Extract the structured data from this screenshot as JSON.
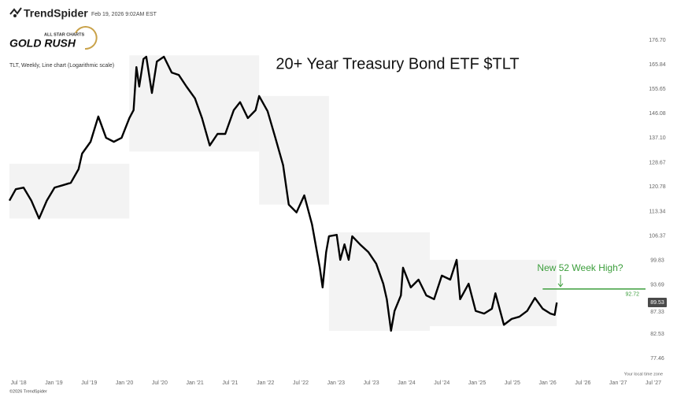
{
  "header": {
    "brand": "TrendSpider",
    "timestamp": "Feb 19, 2026 9:02AM EST",
    "badge_top": "ALL STAR CHARTS",
    "badge_main": "GOLD RUSH"
  },
  "footer": {
    "timezone": "Your local time zone",
    "copyright": "©2026 TrendSpider"
  },
  "chart_data": {
    "type": "line",
    "title": "20+ Year Treasury Bond ETF $TLT",
    "subtitle": "TLT, Weekly, Line chart (Logarithmic scale)",
    "log_scale": true,
    "grid": false,
    "x": [
      2018.37,
      2018.46,
      2018.57,
      2018.68,
      2018.79,
      2018.9,
      2019.01,
      2019.12,
      2019.24,
      2019.35,
      2019.4,
      2019.52,
      2019.63,
      2019.74,
      2019.85,
      2019.96,
      2020.07,
      2020.13,
      2020.17,
      2020.21,
      2020.27,
      2020.31,
      2020.39,
      2020.46,
      2020.56,
      2020.67,
      2020.77,
      2020.88,
      2021.0,
      2021.1,
      2021.21,
      2021.32,
      2021.43,
      2021.55,
      2021.64,
      2021.75,
      2021.86,
      2021.91,
      2022.03,
      2022.14,
      2022.25,
      2022.33,
      2022.44,
      2022.55,
      2022.66,
      2022.77,
      2022.81,
      2022.86,
      2022.9,
      2023.01,
      2023.06,
      2023.12,
      2023.18,
      2023.23,
      2023.34,
      2023.46,
      2023.57,
      2023.67,
      2023.72,
      2023.78,
      2023.83,
      2023.92,
      2023.95,
      2024.06,
      2024.17,
      2024.28,
      2024.39,
      2024.5,
      2024.62,
      2024.71,
      2024.76,
      2024.88,
      2024.98,
      2025.1,
      2025.21,
      2025.26,
      2025.38,
      2025.49,
      2025.6,
      2025.71,
      2025.82,
      2025.93,
      2026.04,
      2026.1,
      2026.13
    ],
    "series": [
      {
        "color": "#000000",
        "values": [
          116.6,
          120.1,
          120.6,
          116.6,
          111.3,
          116.6,
          120.6,
          121.3,
          122.1,
          126.5,
          131.7,
          135.8,
          145.0,
          137.2,
          135.8,
          137.2,
          144.4,
          147.4,
          164.8,
          156.7,
          168.3,
          169.3,
          154.1,
          167.2,
          169.3,
          162.5,
          161.5,
          156.7,
          152.0,
          144.4,
          134.5,
          138.6,
          138.6,
          147.4,
          150.5,
          144.4,
          147.4,
          152.9,
          147.0,
          137.2,
          127.8,
          115.4,
          113.1,
          118.2,
          109.6,
          98.0,
          93.1,
          102.0,
          106.3,
          106.7,
          100.0,
          104.1,
          100.0,
          106.3,
          104.1,
          102.0,
          99.0,
          94.0,
          90.3,
          83.2,
          87.6,
          91.2,
          98.0,
          93.1,
          95.0,
          91.2,
          90.3,
          96.0,
          95.0,
          100.0,
          90.3,
          94.0,
          87.6,
          87.0,
          88.1,
          91.7,
          84.5,
          85.8,
          86.3,
          87.6,
          90.6,
          88.1,
          87.0,
          86.7,
          89.53
        ]
      }
    ],
    "range_band": [
      {
        "start": 2018.37,
        "end": 2020.07,
        "low": 111.3,
        "high": 128.3
      },
      {
        "start": 2020.07,
        "end": 2021.91,
        "low": 132.4,
        "high": 169.9
      },
      {
        "start": 2021.91,
        "end": 2022.9,
        "low": 115.4,
        "high": 152.9
      },
      {
        "start": 2022.9,
        "end": 2024.33,
        "low": 83.2,
        "high": 107.4
      },
      {
        "start": 2024.33,
        "end": 2026.13,
        "low": 84.2,
        "high": 100.0
      }
    ],
    "band_color": "#f3f3f3",
    "reference_line": {
      "value": 92.72,
      "start": 2025.93,
      "color": "#3c9e3c"
    },
    "annotation": "New 52 Week High?",
    "xlim": [
      2018.37,
      2027.6
    ],
    "xticks": [
      {
        "value": 2018.5,
        "label": "Jul '18"
      },
      {
        "value": 2019.0,
        "label": "Jan '19"
      },
      {
        "value": 2019.5,
        "label": "Jul '19"
      },
      {
        "value": 2020.0,
        "label": "Jan '20"
      },
      {
        "value": 2020.5,
        "label": "Jul '20"
      },
      {
        "value": 2021.0,
        "label": "Jan '21"
      },
      {
        "value": 2021.5,
        "label": "Jul '21"
      },
      {
        "value": 2022.0,
        "label": "Jan '22"
      },
      {
        "value": 2022.5,
        "label": "Jul '22"
      },
      {
        "value": 2023.0,
        "label": "Jan '23"
      },
      {
        "value": 2023.5,
        "label": "Jul '23"
      },
      {
        "value": 2024.0,
        "label": "Jan '24"
      },
      {
        "value": 2024.5,
        "label": "Jul '24"
      },
      {
        "value": 2025.0,
        "label": "Jan '25"
      },
      {
        "value": 2025.5,
        "label": "Jul '25"
      },
      {
        "value": 2026.0,
        "label": "Jan '26"
      },
      {
        "value": 2026.5,
        "label": "Jul '26"
      },
      {
        "value": 2027.0,
        "label": "Jan '27"
      },
      {
        "value": 2027.5,
        "label": "Jul '27"
      }
    ],
    "ylim": [
      76,
      190
    ],
    "yticks": [
      77.46,
      82.53,
      87.33,
      93.69,
      99.83,
      106.37,
      113.34,
      120.78,
      128.67,
      {
        "value": 137.1,
        "label": "137.10"
      },
      146.08,
      155.65,
      165.84,
      {
        "value": 176.7,
        "label": "176.70"
      }
    ]
  }
}
